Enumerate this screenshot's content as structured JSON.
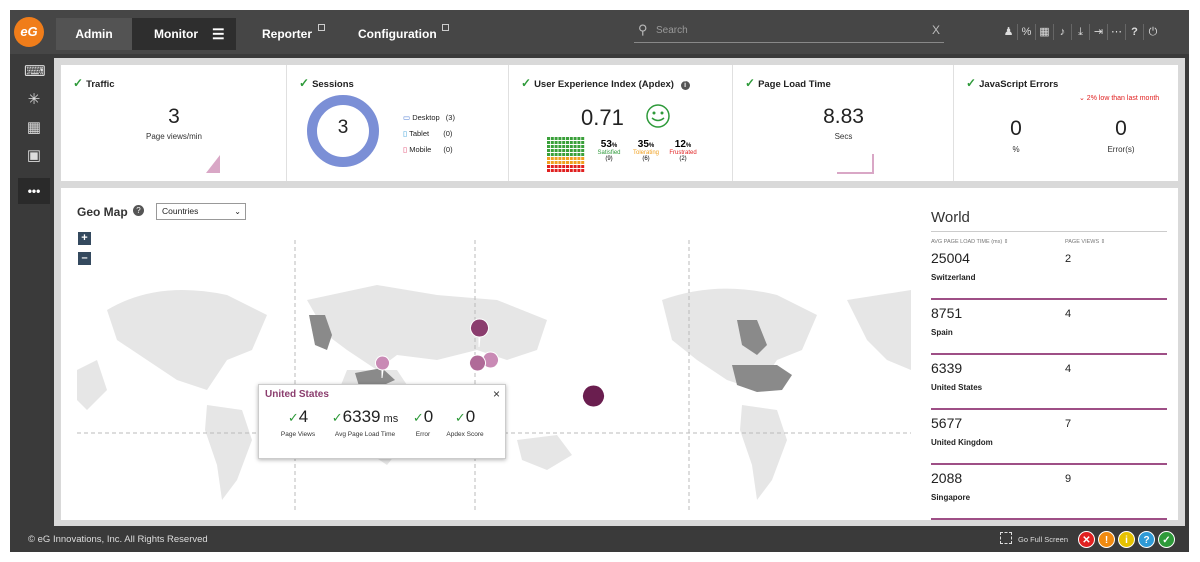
{
  "logo": {
    "text": "eG"
  },
  "nav": {
    "admin": "Admin",
    "monitor": "Monitor",
    "reporter": "Reporter",
    "configuration": "Configuration"
  },
  "search": {
    "placeholder": "Search",
    "clear": "X"
  },
  "top_icons": [
    "user-icon",
    "link-icon",
    "traffic-light-icon",
    "bell-icon",
    "download-icon",
    "logout-icon",
    "more-icon",
    "help-icon",
    "power-icon"
  ],
  "sidebar": {
    "more": "•••"
  },
  "kpis": {
    "traffic": {
      "title": "Traffic",
      "value": "3",
      "label": "Page views/min"
    },
    "sessions": {
      "title": "Sessions",
      "value": "3",
      "devices": [
        {
          "name": "Desktop",
          "count": "(3)"
        },
        {
          "name": "Tablet",
          "count": "(0)"
        },
        {
          "name": "Mobile",
          "count": "(0)"
        }
      ]
    },
    "apdex": {
      "title": "User Experience Index (Apdex)",
      "value": "0.71",
      "stats": [
        {
          "pct": "53",
          "label": "Satisfied",
          "count": "(9)",
          "color": "#2e9a3a"
        },
        {
          "pct": "35",
          "label": "Tolerating",
          "count": "(6)",
          "color": "#f0a020"
        },
        {
          "pct": "12",
          "label": "Frustrated",
          "count": "(2)",
          "color": "#e02020"
        }
      ],
      "pct_sign": "%"
    },
    "page_load": {
      "title": "Page Load Time",
      "value": "8.83",
      "label": "Secs"
    },
    "js_errors": {
      "title": "JavaScript Errors",
      "trend": "⌄ 2% low than last month",
      "pct_value": "0",
      "pct_label": "%",
      "err_value": "0",
      "err_label": "Error(s)"
    }
  },
  "geo": {
    "title": "Geo Map",
    "select_value": "Countries",
    "zoom_in": "+",
    "zoom_out": "–"
  },
  "popup": {
    "title": "United States",
    "close": "×",
    "stats": [
      {
        "value": "4",
        "unit": "",
        "label": "Page Views"
      },
      {
        "value": "6339",
        "unit": " ms",
        "label": "Avg Page Load Time"
      },
      {
        "value": "0",
        "unit": "",
        "label": "Error"
      },
      {
        "value": "0",
        "unit": "",
        "label": "Apdex Score"
      }
    ]
  },
  "world": {
    "title": "World",
    "col1": "AVG PAGE LOAD TIME (ms) ⇕",
    "col2": "PAGE VIEWS ⇕",
    "rows": [
      {
        "value": "25004",
        "views": "2",
        "country": "Switzerland"
      },
      {
        "value": "8751",
        "views": "4",
        "country": "Spain"
      },
      {
        "value": "6339",
        "views": "4",
        "country": "United States"
      },
      {
        "value": "5677",
        "views": "7",
        "country": "United Kingdom"
      },
      {
        "value": "2088",
        "views": "9",
        "country": "Singapore"
      }
    ]
  },
  "footer": {
    "copyright": "© eG Innovations, Inc. All Rights Reserved",
    "fullscreen": "Go Full Screen",
    "alarms": [
      {
        "symbol": "✕",
        "color": "#e02020",
        "name": "critical-alarm-icon"
      },
      {
        "symbol": "!",
        "color": "#f08a10",
        "name": "major-alarm-icon"
      },
      {
        "symbol": "i",
        "color": "#e6c200",
        "name": "minor-alarm-icon"
      },
      {
        "symbol": "?",
        "color": "#2f9ad6",
        "name": "unknown-alarm-icon"
      },
      {
        "symbol": "✓",
        "color": "#2e9a3a",
        "name": "normal-alarm-icon"
      }
    ]
  }
}
